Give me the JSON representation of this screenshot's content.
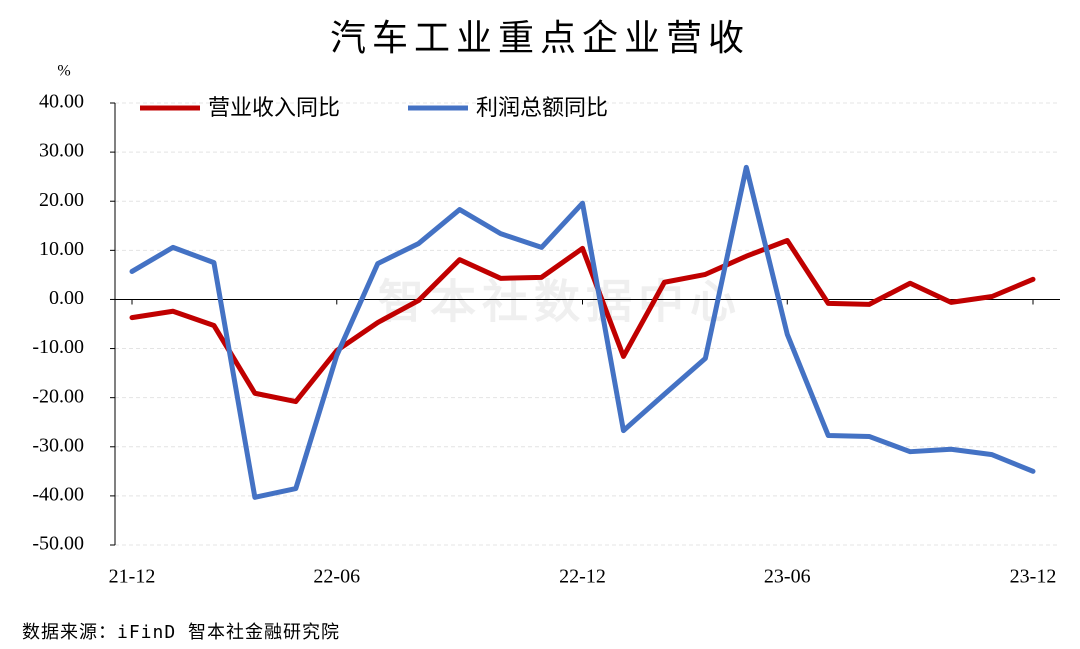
{
  "chart_data": {
    "type": "line",
    "title": "汽车工业重点企业营收",
    "y_label": "%",
    "watermark": "智本社数据中心",
    "source": "数据来源：iFinD 智本社金融研究院",
    "categories": [
      "21-12",
      null,
      null,
      null,
      null,
      "22-06",
      null,
      null,
      null,
      null,
      null,
      "22-12",
      null,
      null,
      null,
      null,
      "23-06",
      null,
      null,
      null,
      null,
      null,
      "23-12"
    ],
    "series": [
      {
        "name": "营业收入同比",
        "color": "#c00000",
        "values": [
          -3.7,
          -2.4,
          -5.3,
          -19.1,
          -20.8,
          -10.4,
          -4.7,
          -0.2,
          8.1,
          4.3,
          4.5,
          10.4,
          -11.6,
          3.5,
          5.1,
          8.8,
          12.0,
          -0.8,
          -1.0,
          3.3,
          -0.6,
          0.6,
          4.1
        ]
      },
      {
        "name": "利润总额同比",
        "color": "#4472c4",
        "values": [
          5.7,
          10.6,
          7.5,
          -40.3,
          -38.5,
          -11.4,
          7.3,
          11.4,
          18.3,
          13.4,
          10.6,
          19.6,
          -26.7,
          -19.3,
          -12.0,
          26.9,
          -7.1,
          -27.7,
          -27.9,
          -31.0,
          -30.5,
          -31.6,
          -35.0
        ]
      }
    ],
    "ylim": [
      -50,
      40
    ],
    "yticks": [
      {
        "value": -50,
        "label": "-50.00"
      },
      {
        "value": -40,
        "label": "-40.00"
      },
      {
        "value": -30,
        "label": "-30.00"
      },
      {
        "value": -20,
        "label": "-20.00"
      },
      {
        "value": -10,
        "label": "-10.00"
      },
      {
        "value": 0,
        "label": "0.00"
      },
      {
        "value": 10,
        "label": "10.00"
      },
      {
        "value": 20,
        "label": "20.00"
      },
      {
        "value": 30,
        "label": "30.00"
      },
      {
        "value": 40,
        "label": "40.00"
      }
    ],
    "grid": true,
    "legend": "top-left"
  }
}
